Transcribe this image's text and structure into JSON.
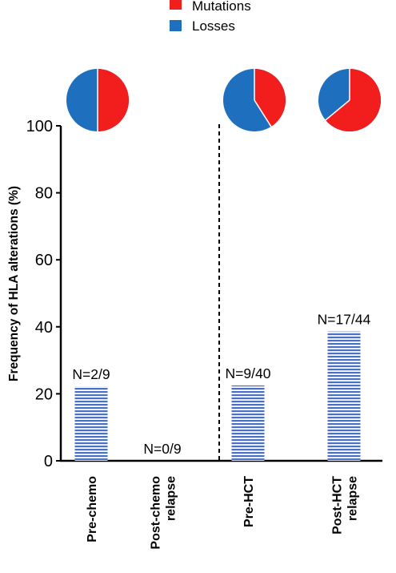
{
  "chart_data": {
    "type": "bar",
    "title": "",
    "ylabel": "Frequency of HLA alterations (%)",
    "xlabel": "",
    "ylim": [
      0,
      100
    ],
    "yticks": [
      "0",
      "20",
      "40",
      "60",
      "80",
      "100"
    ],
    "yticks_values": [
      0,
      20,
      40,
      60,
      80,
      100
    ],
    "categories": [
      [
        "Pre-chemo"
      ],
      [
        "Post-chemo",
        "relapse"
      ],
      [
        "Pre-HCT"
      ],
      [
        "Post-HCT",
        "relapse"
      ]
    ],
    "values": [
      22.2,
      0,
      22.5,
      38.6
    ],
    "data_labels": [
      "N=2/9",
      "N=0/9",
      "N=9/40",
      "N=17/44"
    ],
    "bar_color": "#4a6fc4",
    "group_divider_after_index": 1,
    "legend": {
      "placement": "top-center",
      "items": [
        {
          "label": "Mutations",
          "color": "#f21d1d"
        },
        {
          "label": "Losses",
          "color": "#1f6fbf"
        }
      ]
    },
    "pies": [
      {
        "category_index": 0,
        "mutations": 50,
        "losses": 50
      },
      {
        "category_index": 1,
        "mutations": null,
        "losses": null
      },
      {
        "category_index": 2,
        "mutations": 41,
        "losses": 59
      },
      {
        "category_index": 3,
        "mutations": 64,
        "losses": 36
      }
    ]
  }
}
